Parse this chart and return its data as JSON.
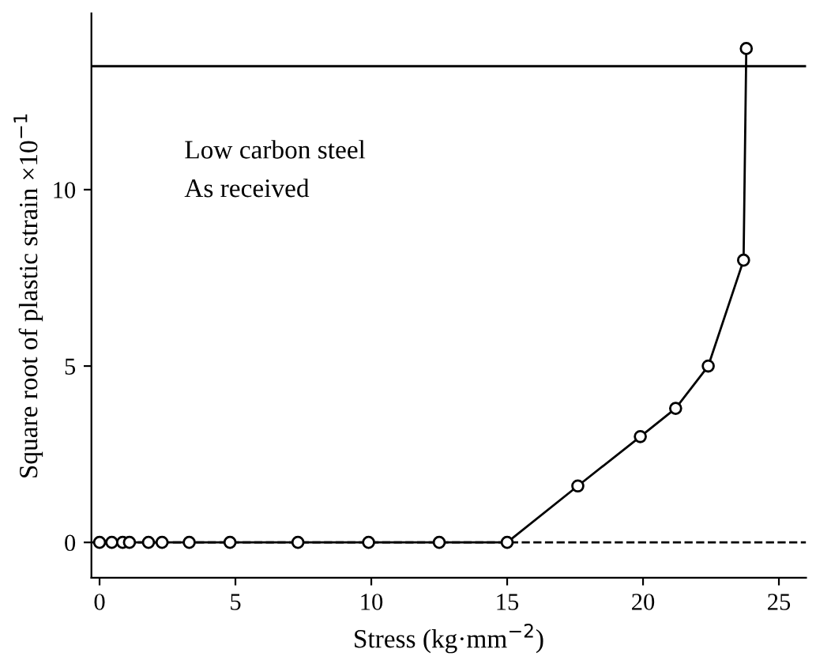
{
  "chart_data": {
    "type": "line",
    "xlabel": "Stress (kg·mm$^{−2}$)",
    "ylabel": "Square root of plastic strain ×10$^{−1}$",
    "x": [
      0,
      0.45,
      0.85,
      1.1,
      1.8,
      2.3,
      3.3,
      4.8,
      7.3,
      9.9,
      12.5,
      15.0,
      17.6,
      19.9,
      21.2,
      22.4,
      23.7,
      23.8
    ],
    "values": [
      0,
      0,
      0,
      0,
      0,
      0,
      0,
      0,
      0,
      0,
      0,
      0,
      1.6,
      3.0,
      3.8,
      5.0,
      8.0,
      14.0
    ],
    "color": "#000000",
    "marker": "circle",
    "line_style": "solid",
    "grid": false,
    "legend": false,
    "xlim": [
      -0.3,
      26
    ],
    "xticks": [
      0,
      5,
      10,
      15,
      20,
      25
    ],
    "ylim": [
      -1,
      15
    ],
    "yticks": [
      0,
      5,
      10
    ],
    "ref_lines": [
      {
        "axis": "y",
        "value": 0,
        "line_style": "dashed",
        "color": "#000000"
      },
      {
        "axis": "y",
        "value": 13.5,
        "line_style": "solid",
        "color": "#000000"
      }
    ],
    "annotations": [
      "Low carbon steel\nAs received"
    ]
  }
}
